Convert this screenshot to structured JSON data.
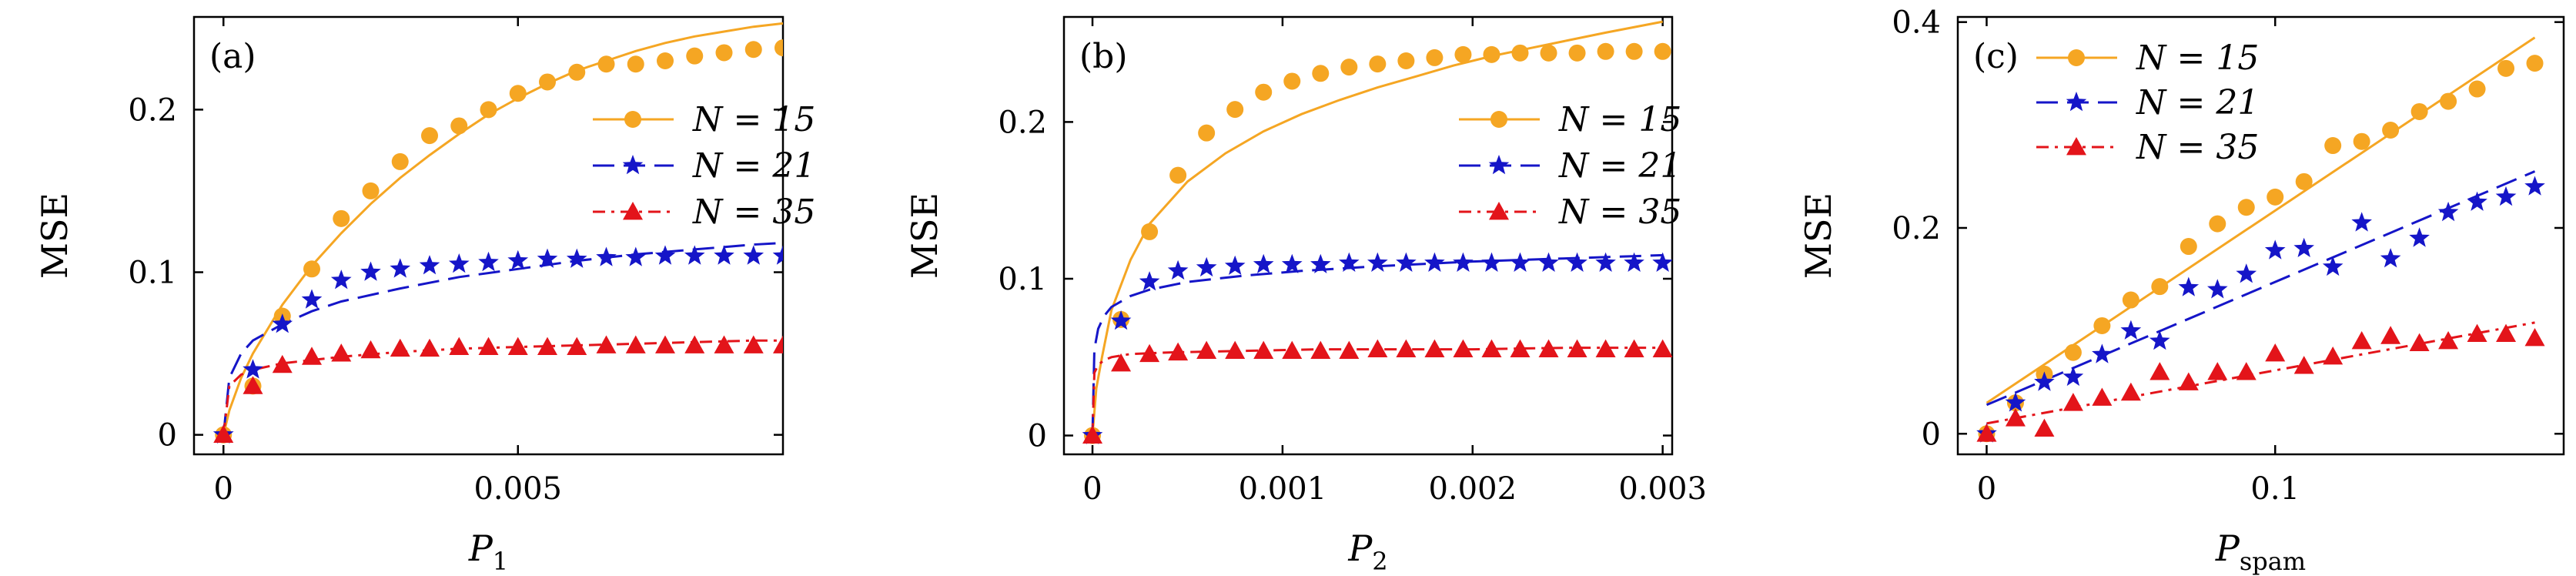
{
  "colors": {
    "orange": "#F5A623",
    "blue": "#1515C8",
    "red": "#E3141A"
  },
  "chart_data": [
    {
      "type": "scatter",
      "panel_label": "(a)",
      "xlabel": "P",
      "xlabel_sub": "1",
      "ylabel": "MSE",
      "xlim": [
        -0.0005,
        0.0095
      ],
      "ylim": [
        -0.012,
        0.257
      ],
      "xticks": [
        0,
        0.005
      ],
      "xtick_labels": [
        "0",
        "0.005"
      ],
      "yticks": [
        0,
        0.1,
        0.2
      ],
      "ytick_labels": [
        "0",
        "0.1",
        "0.2"
      ],
      "legend_position": "center-right",
      "series": [
        {
          "name": "N = 15",
          "marker": "circle",
          "line": "solid",
          "color": "#F5A623",
          "x": [
            0,
            0.0005,
            0.001,
            0.0015,
            0.002,
            0.0025,
            0.003,
            0.0035,
            0.004,
            0.0045,
            0.005,
            0.0055,
            0.006,
            0.0065,
            0.007,
            0.0075,
            0.008,
            0.0085,
            0.009,
            0.0095
          ],
          "y": [
            0,
            0.03,
            0.073,
            0.102,
            0.133,
            0.15,
            0.168,
            0.184,
            0.19,
            0.2,
            0.21,
            0.217,
            0.223,
            0.228,
            0.228,
            0.23,
            0.233,
            0.235,
            0.237,
            0.238
          ],
          "fit_x": [
            0,
            0.0001,
            0.0003,
            0.0005,
            0.001,
            0.0015,
            0.002,
            0.0025,
            0.003,
            0.0035,
            0.004,
            0.0045,
            0.005,
            0.0055,
            0.006,
            0.0065,
            0.007,
            0.0075,
            0.008,
            0.0085,
            0.009,
            0.0095
          ],
          "fit_y": [
            0,
            0.015,
            0.035,
            0.05,
            0.08,
            0.104,
            0.124,
            0.142,
            0.158,
            0.172,
            0.185,
            0.197,
            0.207,
            0.216,
            0.224,
            0.23,
            0.236,
            0.241,
            0.245,
            0.248,
            0.251,
            0.253
          ]
        },
        {
          "name": "N = 21",
          "marker": "star",
          "line": "dashed",
          "color": "#1515C8",
          "x": [
            0,
            0.0005,
            0.001,
            0.0015,
            0.002,
            0.0025,
            0.003,
            0.0035,
            0.004,
            0.0045,
            0.005,
            0.0055,
            0.006,
            0.0065,
            0.007,
            0.0075,
            0.008,
            0.0085,
            0.009,
            0.0095
          ],
          "y": [
            0,
            0.04,
            0.068,
            0.083,
            0.095,
            0.1,
            0.102,
            0.104,
            0.105,
            0.106,
            0.107,
            0.108,
            0.108,
            0.109,
            0.109,
            0.11,
            0.11,
            0.11,
            0.11,
            0.11
          ],
          "fit_x": [
            0,
            0.0001,
            0.0003,
            0.0005,
            0.001,
            0.0015,
            0.002,
            0.003,
            0.004,
            0.005,
            0.006,
            0.007,
            0.008,
            0.009,
            0.0095
          ],
          "fit_y": [
            0,
            0.035,
            0.05,
            0.058,
            0.068,
            0.076,
            0.082,
            0.09,
            0.097,
            0.102,
            0.107,
            0.111,
            0.114,
            0.117,
            0.118
          ]
        },
        {
          "name": "N = 35",
          "marker": "triangle",
          "line": "dashdot",
          "color": "#E3141A",
          "x": [
            0,
            0.0005,
            0.001,
            0.0015,
            0.002,
            0.0025,
            0.003,
            0.0035,
            0.004,
            0.0045,
            0.005,
            0.0055,
            0.006,
            0.0065,
            0.007,
            0.0075,
            0.008,
            0.0085,
            0.009,
            0.0095
          ],
          "y": [
            0,
            0.03,
            0.043,
            0.048,
            0.05,
            0.052,
            0.053,
            0.053,
            0.054,
            0.054,
            0.054,
            0.054,
            0.054,
            0.055,
            0.055,
            0.055,
            0.055,
            0.055,
            0.055,
            0.055
          ],
          "fit_x": [
            0,
            0.0001,
            0.0003,
            0.0005,
            0.001,
            0.002,
            0.003,
            0.004,
            0.005,
            0.006,
            0.007,
            0.008,
            0.009,
            0.0095
          ],
          "fit_y": [
            0,
            0.03,
            0.037,
            0.04,
            0.044,
            0.048,
            0.051,
            0.053,
            0.054,
            0.055,
            0.056,
            0.057,
            0.058,
            0.058
          ]
        }
      ]
    },
    {
      "type": "scatter",
      "panel_label": "(b)",
      "xlabel": "P",
      "xlabel_sub": "2",
      "ylabel": "MSE",
      "xlim": [
        -0.00015,
        0.00305
      ],
      "ylim": [
        -0.012,
        0.267
      ],
      "xticks": [
        0,
        0.001,
        0.002,
        0.003
      ],
      "xtick_labels": [
        "0",
        "0.001",
        "0.002",
        "0.003"
      ],
      "yticks": [
        0,
        0.1,
        0.2
      ],
      "ytick_labels": [
        "0",
        "0.1",
        "0.2"
      ],
      "legend_position": "center-right",
      "series": [
        {
          "name": "N = 15",
          "marker": "circle",
          "line": "solid",
          "color": "#F5A623",
          "x": [
            0,
            0.00015,
            0.0003,
            0.00045,
            0.0006,
            0.00075,
            0.0009,
            0.00105,
            0.0012,
            0.00135,
            0.0015,
            0.00165,
            0.0018,
            0.00195,
            0.0021,
            0.00225,
            0.0024,
            0.00255,
            0.0027,
            0.00285,
            0.003
          ],
          "y": [
            0,
            0.074,
            0.13,
            0.166,
            0.193,
            0.208,
            0.219,
            0.226,
            0.231,
            0.235,
            0.237,
            0.239,
            0.241,
            0.243,
            0.243,
            0.244,
            0.244,
            0.244,
            0.245,
            0.245,
            0.245
          ],
          "fit_x": [
            0,
            2e-05,
            5e-05,
            0.0001,
            0.0002,
            0.0003,
            0.0005,
            0.0007,
            0.0009,
            0.0011,
            0.0013,
            0.0015,
            0.0017,
            0.0019,
            0.0021,
            0.0023,
            0.0025,
            0.0027,
            0.003
          ],
          "fit_y": [
            0,
            0.03,
            0.05,
            0.08,
            0.112,
            0.135,
            0.162,
            0.18,
            0.194,
            0.205,
            0.214,
            0.222,
            0.229,
            0.236,
            0.242,
            0.247,
            0.252,
            0.257,
            0.264
          ]
        },
        {
          "name": "N = 21",
          "marker": "star",
          "line": "dashed",
          "color": "#1515C8",
          "x": [
            0,
            0.00015,
            0.0003,
            0.00045,
            0.0006,
            0.00075,
            0.0009,
            0.00105,
            0.0012,
            0.00135,
            0.0015,
            0.00165,
            0.0018,
            0.00195,
            0.0021,
            0.00225,
            0.0024,
            0.00255,
            0.0027,
            0.00285,
            0.003
          ],
          "y": [
            0,
            0.073,
            0.098,
            0.105,
            0.107,
            0.108,
            0.109,
            0.109,
            0.109,
            0.11,
            0.11,
            0.11,
            0.11,
            0.11,
            0.11,
            0.11,
            0.11,
            0.11,
            0.11,
            0.11,
            0.11
          ],
          "fit_x": [
            0,
            1e-05,
            3e-05,
            6e-05,
            0.0001,
            0.0002,
            0.0003,
            0.0005,
            0.0008,
            0.0011,
            0.0015,
            0.002,
            0.0025,
            0.003
          ],
          "fit_y": [
            0,
            0.055,
            0.068,
            0.076,
            0.082,
            0.089,
            0.093,
            0.098,
            0.102,
            0.105,
            0.108,
            0.111,
            0.113,
            0.115
          ]
        },
        {
          "name": "N = 35",
          "marker": "triangle",
          "line": "dashdot",
          "color": "#E3141A",
          "x": [
            0,
            0.00015,
            0.0003,
            0.00045,
            0.0006,
            0.00075,
            0.0009,
            0.00105,
            0.0012,
            0.00135,
            0.0015,
            0.00165,
            0.0018,
            0.00195,
            0.0021,
            0.00225,
            0.0024,
            0.00255,
            0.0027,
            0.00285,
            0.003
          ],
          "y": [
            0,
            0.046,
            0.052,
            0.053,
            0.054,
            0.054,
            0.054,
            0.054,
            0.054,
            0.054,
            0.055,
            0.055,
            0.055,
            0.055,
            0.055,
            0.055,
            0.055,
            0.055,
            0.055,
            0.055,
            0.055
          ],
          "fit_x": [
            0,
            1e-05,
            3e-05,
            6e-05,
            0.0001,
            0.0002,
            0.0004,
            0.0008,
            0.0012,
            0.0016,
            0.002,
            0.0025,
            0.003
          ],
          "fit_y": [
            0,
            0.04,
            0.045,
            0.048,
            0.05,
            0.052,
            0.053,
            0.054,
            0.055,
            0.055,
            0.055,
            0.056,
            0.056
          ]
        }
      ]
    },
    {
      "type": "scatter",
      "panel_label": "(c)",
      "xlabel": "P",
      "xlabel_sub": "spam",
      "ylabel": "MSE",
      "xlim": [
        -0.01,
        0.2
      ],
      "ylim": [
        -0.02,
        0.405
      ],
      "xticks": [
        0,
        0.1
      ],
      "xtick_labels": [
        "0",
        "0.1"
      ],
      "yticks": [
        0,
        0.2,
        0.4
      ],
      "ytick_labels": [
        "0",
        "0.2",
        "0.4"
      ],
      "legend_position": "top-left",
      "series": [
        {
          "name": "N = 15",
          "marker": "circle",
          "line": "solid",
          "color": "#F5A623",
          "x": [
            0,
            0.01,
            0.02,
            0.03,
            0.04,
            0.05,
            0.06,
            0.07,
            0.08,
            0.09,
            0.1,
            0.11,
            0.12,
            0.13,
            0.14,
            0.15,
            0.16,
            0.17,
            0.18,
            0.19
          ],
          "y": [
            0,
            0.03,
            0.058,
            0.079,
            0.105,
            0.13,
            0.143,
            0.182,
            0.204,
            0.22,
            0.23,
            0.245,
            0.28,
            0.284,
            0.295,
            0.313,
            0.323,
            0.335,
            0.355,
            0.36
          ],
          "fit_x": [
            0,
            0.19
          ],
          "fit_y": [
            0.03,
            0.385
          ]
        },
        {
          "name": "N = 21",
          "marker": "star",
          "line": "dashed",
          "color": "#1515C8",
          "x": [
            0,
            0.01,
            0.02,
            0.03,
            0.04,
            0.05,
            0.06,
            0.07,
            0.08,
            0.09,
            0.1,
            0.11,
            0.12,
            0.13,
            0.14,
            0.15,
            0.16,
            0.17,
            0.18,
            0.19
          ],
          "y": [
            0,
            0.03,
            0.05,
            0.055,
            0.077,
            0.1,
            0.09,
            0.142,
            0.14,
            0.155,
            0.178,
            0.18,
            0.162,
            0.205,
            0.17,
            0.19,
            0.215,
            0.225,
            0.23,
            0.24
          ],
          "fit_x": [
            0,
            0.19
          ],
          "fit_y": [
            0.028,
            0.255
          ]
        },
        {
          "name": "N = 35",
          "marker": "triangle",
          "line": "dashdot",
          "color": "#E3141A",
          "x": [
            0,
            0.01,
            0.02,
            0.03,
            0.04,
            0.05,
            0.06,
            0.07,
            0.08,
            0.09,
            0.1,
            0.11,
            0.12,
            0.13,
            0.14,
            0.15,
            0.16,
            0.17,
            0.18,
            0.19
          ],
          "y": [
            0,
            0.015,
            0.005,
            0.03,
            0.035,
            0.04,
            0.06,
            0.05,
            0.06,
            0.06,
            0.078,
            0.066,
            0.075,
            0.09,
            0.095,
            0.088,
            0.09,
            0.097,
            0.097,
            0.093
          ],
          "fit_x": [
            0,
            0.19
          ],
          "fit_y": [
            0.01,
            0.108
          ]
        }
      ]
    }
  ]
}
